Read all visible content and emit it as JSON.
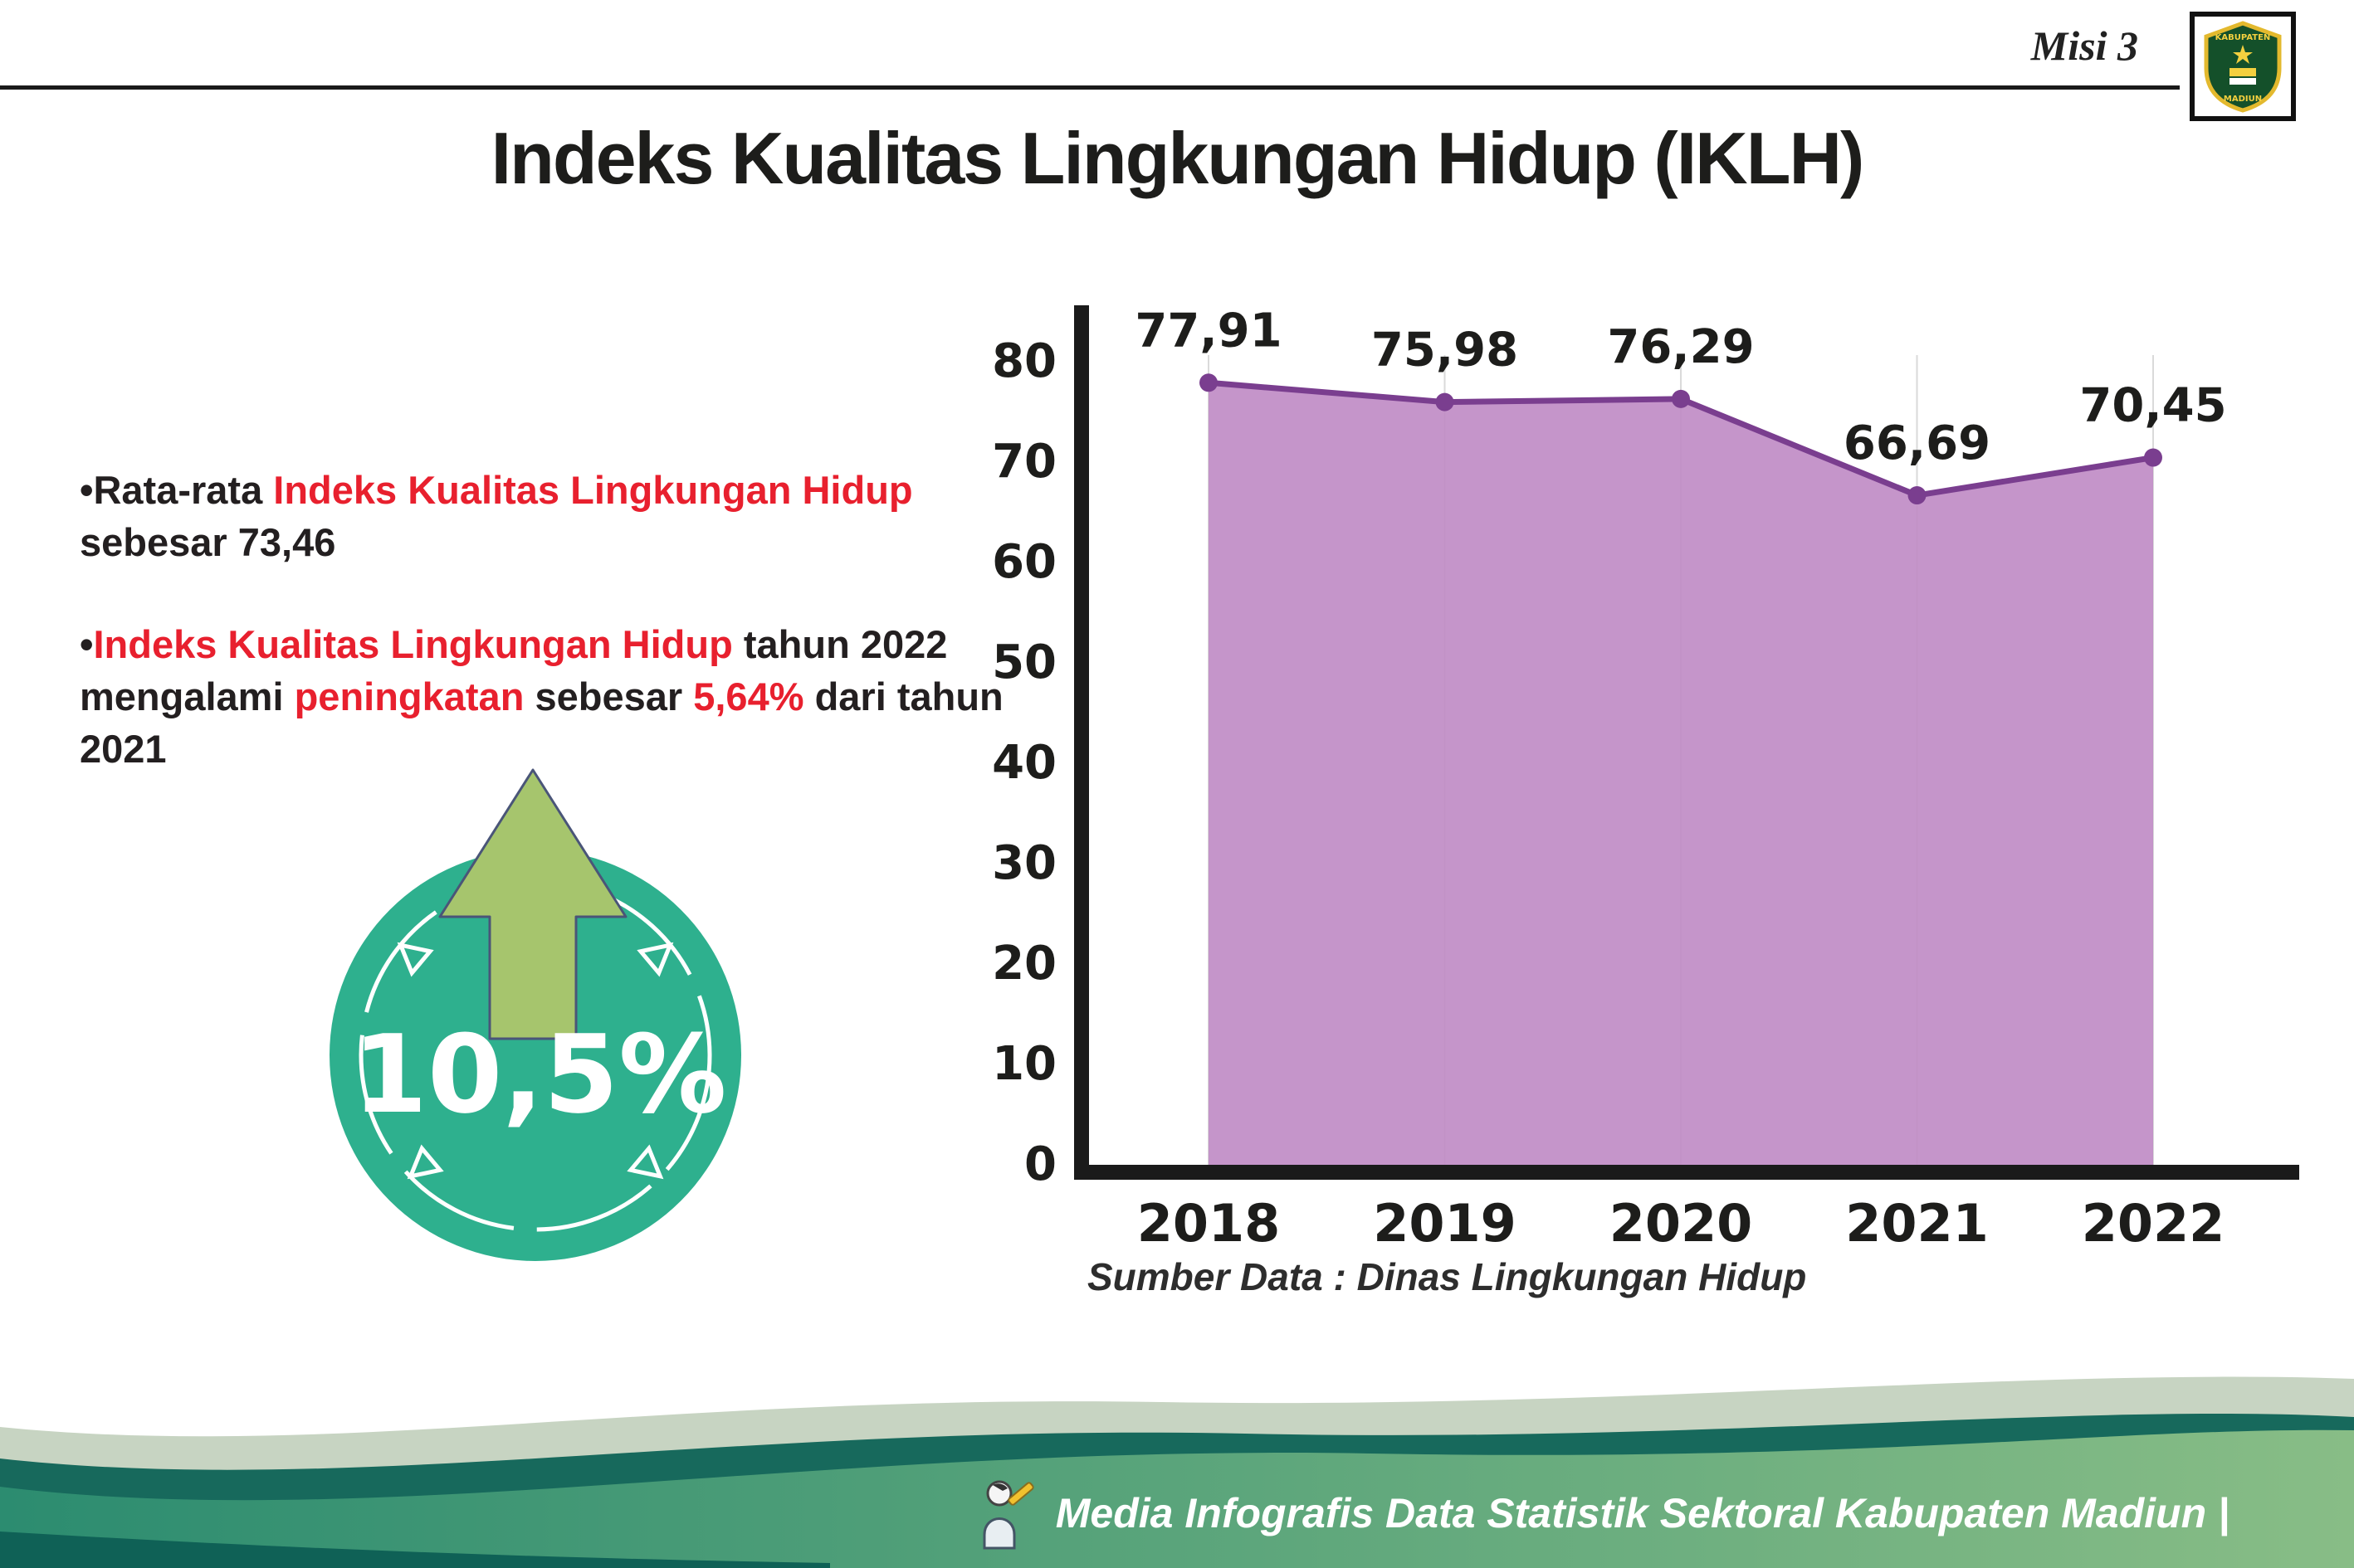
{
  "colors": {
    "red": "#e8202e",
    "teal": "#2eb08e",
    "purple_fill": "#c08cc6",
    "purple_line": "#7a3e8f",
    "arrow_green": "#a6c56d"
  },
  "header": {
    "misi": "Misi 3",
    "title": "Indeks Kualitas Lingkungan Hidup (IKLH)"
  },
  "logo": {
    "top_text": "KABUPATEN",
    "bottom_text": "MADIUN"
  },
  "bullet_char": "•",
  "bullets": {
    "b1": {
      "p1": "Rata-rata ",
      "p2": "Indeks Kualitas Lingkungan Hidup",
      "p3": " sebesar 73,46"
    },
    "b2": {
      "p1": "Indeks Kualitas Lingkungan Hidup",
      "p2": " tahun 2022 mengalami ",
      "p3": "peningkatan",
      "p4": " sebesar ",
      "p5": "5,64%",
      "p6": " dari tahun 2021"
    }
  },
  "badge": {
    "value": "10,5%"
  },
  "chart_data": {
    "type": "area",
    "title": "",
    "categories": [
      "2018",
      "2019",
      "2020",
      "2021",
      "2022"
    ],
    "values": [
      77.91,
      75.98,
      76.29,
      66.69,
      70.45
    ],
    "labels": [
      "77,91",
      "75,98",
      "76,29",
      "66,69",
      "70,45"
    ],
    "ylim": [
      0,
      80
    ],
    "yticks": [
      0,
      10,
      20,
      30,
      40,
      50,
      60,
      70,
      80
    ],
    "grid": "vertical-light",
    "legend": "none",
    "source_label": "Sumber Data : Dinas Lingkungan Hidup"
  },
  "footer": {
    "text": "Media Infografis Data Statistik Sektoral Kabupaten Madiun |"
  }
}
